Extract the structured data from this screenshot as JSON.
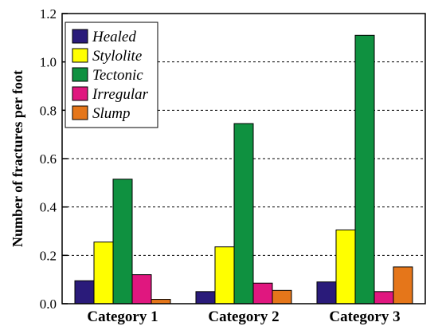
{
  "chart_data": {
    "type": "bar",
    "title": "",
    "xlabel": "",
    "ylabel": "Number of fractures per foot",
    "ylim": [
      0,
      1.2
    ],
    "yticks": [
      "0.0",
      "0.2",
      "0.4",
      "0.6",
      "0.8",
      "1.0",
      "1.2"
    ],
    "grid": "horizontal dashed",
    "legend_position": "top-left",
    "categories": [
      "Category 1",
      "Category 2",
      "Category 3"
    ],
    "series": [
      {
        "name": "Healed",
        "color": "#2a1b7a",
        "values": [
          0.095,
          0.05,
          0.09
        ]
      },
      {
        "name": "Stylolite",
        "color": "#ffff00",
        "values": [
          0.255,
          0.235,
          0.305
        ]
      },
      {
        "name": "Tectonic",
        "color": "#0f9140",
        "values": [
          0.515,
          0.745,
          1.11
        ]
      },
      {
        "name": "Irregular",
        "color": "#e0177f",
        "values": [
          0.12,
          0.085,
          0.05
        ]
      },
      {
        "name": "Slump",
        "color": "#e5761a",
        "values": [
          0.018,
          0.055,
          0.152
        ]
      }
    ]
  }
}
